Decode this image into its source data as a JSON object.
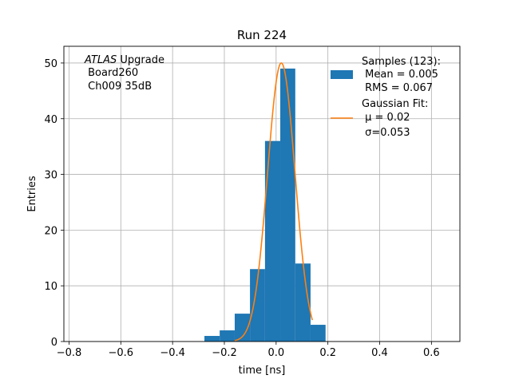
{
  "chart_data": {
    "type": "bar",
    "title": "Run 224",
    "xlabel": "time [ns]",
    "ylabel": "Entries",
    "xlim": [
      -0.82,
      0.71
    ],
    "ylim": [
      0,
      53
    ],
    "x_ticks": [
      -0.8,
      -0.6,
      -0.4,
      -0.2,
      0.0,
      0.2,
      0.4,
      0.6
    ],
    "x_tick_labels": [
      "−0.8",
      "−0.6",
      "−0.4",
      "−0.2",
      "0.0",
      "0.2",
      "0.4",
      "0.6"
    ],
    "y_ticks": [
      0,
      10,
      20,
      30,
      40,
      50
    ],
    "y_tick_labels": [
      "0",
      "10",
      "20",
      "30",
      "40",
      "50"
    ],
    "grid": true,
    "legend_placement": "top-right",
    "annotation": {
      "italic": "ATLAS",
      "line1_rest": " Upgrade",
      "line2": " Board260",
      "line3": " Ch009 35dB"
    },
    "histogram": {
      "name_lines": [
        "Samples (123):",
        " Mean = 0.005",
        " RMS = 0.067"
      ],
      "color": "#1f77b4",
      "bin_edges": [
        -0.277,
        -0.218,
        -0.16,
        -0.101,
        -0.043,
        0.016,
        0.074,
        0.133,
        0.191
      ],
      "counts": [
        1,
        2,
        5,
        13,
        36,
        49,
        14,
        3
      ]
    },
    "fit": {
      "name_lines": [
        "Gaussian Fit:",
        " μ = 0.02",
        " σ=0.053"
      ],
      "color": "#ff7f0e",
      "amplitude": 50,
      "mu": 0.02,
      "sigma": 0.053,
      "x_range": [
        -0.16,
        0.14
      ]
    }
  }
}
